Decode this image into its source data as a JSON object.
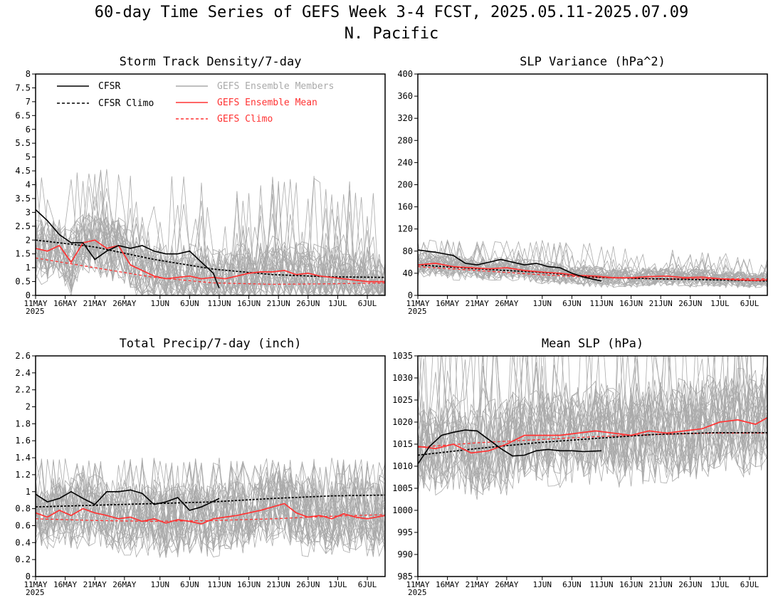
{
  "page": {
    "title_line1": "60-day Time Series of GEFS Week 3-4 FCST, 2025.05.11-2025.07.09",
    "title_line2": "N. Pacific"
  },
  "colors": {
    "obs": "#000000",
    "members": "#aaaaaa",
    "mean": "#ff3333",
    "gefs_climo": "#ff3333"
  },
  "x_axis": {
    "tick_labels": [
      "11MAY",
      "16MAY",
      "21MAY",
      "26MAY",
      "1JUN",
      "6JUN",
      "11JUN",
      "16JUN",
      "21JUN",
      "26JUN",
      "1JUL",
      "6JUL"
    ],
    "tick_days": [
      0,
      5,
      10,
      15,
      21,
      26,
      31,
      36,
      41,
      46,
      51,
      56
    ],
    "year_label": "2025",
    "range_days": [
      0,
      59
    ]
  },
  "legend": {
    "cfsr": "CFSR",
    "cfsr_climo": "CFSR Climo",
    "members": "GEFS Ensemble Members",
    "mean": "GEFS Ensemble Mean",
    "gefs_climo": "GEFS Climo"
  },
  "chart_data": [
    {
      "type": "line",
      "title": "Storm Track Density/7-day",
      "ylim": [
        0,
        8
      ],
      "yticks": [
        "0",
        "0.5",
        "1",
        "1.5",
        "2",
        "2.5",
        "3",
        "3.5",
        "4",
        "4.5",
        "5",
        "5.5",
        "6",
        "6.5",
        "7",
        "7.5",
        "8"
      ],
      "grid": false,
      "legend_position": "top-left",
      "series": [
        {
          "name": "CFSR",
          "role": "obs",
          "x": [
            0,
            2,
            4,
            6,
            8,
            10,
            12,
            14,
            16,
            18,
            20,
            22,
            24,
            26,
            28,
            30,
            31
          ],
          "y": [
            3.1,
            2.7,
            2.2,
            1.9,
            1.9,
            1.3,
            1.6,
            1.8,
            1.7,
            1.8,
            1.6,
            1.5,
            1.5,
            1.6,
            1.2,
            0.8,
            0.25
          ]
        },
        {
          "name": "CFSR Climo",
          "role": "obs_climo",
          "x": [
            0,
            10,
            20,
            30,
            40,
            50,
            59
          ],
          "y": [
            2.0,
            1.75,
            1.3,
            0.95,
            0.75,
            0.67,
            0.65
          ]
        },
        {
          "name": "GEFS Ensemble Mean",
          "role": "mean",
          "x": [
            0,
            2,
            4,
            6,
            8,
            10,
            12,
            14,
            16,
            18,
            20,
            22,
            24,
            26,
            28,
            30,
            32,
            34,
            36,
            38,
            40,
            42,
            44,
            46,
            48,
            50,
            52,
            54,
            56,
            59
          ],
          "y": [
            1.7,
            1.6,
            1.8,
            1.2,
            1.9,
            2.0,
            1.7,
            1.8,
            1.1,
            0.9,
            0.7,
            0.6,
            0.65,
            0.7,
            0.6,
            0.65,
            0.6,
            0.7,
            0.8,
            0.85,
            0.85,
            0.9,
            0.75,
            0.8,
            0.7,
            0.65,
            0.6,
            0.55,
            0.5,
            0.5
          ]
        },
        {
          "name": "GEFS Climo",
          "role": "model_climo",
          "x": [
            0,
            10,
            20,
            30,
            40,
            50,
            59
          ],
          "y": [
            1.35,
            1.0,
            0.65,
            0.45,
            0.4,
            0.42,
            0.45
          ]
        }
      ],
      "members": {
        "count": 31,
        "spread_start": 1.0,
        "spread_end": 1.0,
        "max": 4.6
      }
    },
    {
      "type": "line",
      "title": "SLP Variance (hPa^2)",
      "ylim": [
        0,
        400
      ],
      "yticks": [
        "0",
        "40",
        "80",
        "120",
        "160",
        "200",
        "240",
        "280",
        "320",
        "360",
        "400"
      ],
      "grid": false,
      "series": [
        {
          "name": "CFSR",
          "role": "obs",
          "x": [
            0,
            3,
            6,
            8,
            10,
            12,
            14,
            16,
            18,
            20,
            22,
            24,
            26,
            28,
            31
          ],
          "y": [
            82,
            78,
            72,
            58,
            55,
            60,
            65,
            60,
            55,
            58,
            52,
            50,
            40,
            33,
            26
          ]
        },
        {
          "name": "CFSR Climo",
          "role": "obs_climo",
          "x": [
            0,
            10,
            20,
            30,
            40,
            50,
            59
          ],
          "y": [
            55,
            48,
            42,
            33,
            30,
            28,
            26
          ]
        },
        {
          "name": "GEFS Ensemble Mean",
          "role": "mean",
          "x": [
            0,
            3,
            6,
            9,
            12,
            15,
            18,
            21,
            24,
            27,
            30,
            33,
            36,
            39,
            42,
            45,
            48,
            51,
            54,
            57,
            59
          ],
          "y": [
            55,
            58,
            52,
            50,
            48,
            50,
            45,
            42,
            40,
            36,
            35,
            32,
            32,
            34,
            35,
            32,
            33,
            30,
            28,
            27,
            28
          ]
        },
        {
          "name": "GEFS Climo",
          "role": "model_climo",
          "x": [
            0,
            10,
            20,
            30,
            40,
            50,
            59
          ],
          "y": [
            52,
            45,
            38,
            32,
            30,
            30,
            30
          ]
        }
      ],
      "members": {
        "count": 31,
        "spread_start": 20,
        "spread_end": 12,
        "max": 100
      }
    },
    {
      "type": "line",
      "title": "Total Precip/7-day (inch)",
      "ylim": [
        0,
        2.6
      ],
      "yticks": [
        "0",
        "0.2",
        "0.4",
        "0.6",
        "0.8",
        "1",
        "1.2",
        "1.4",
        "1.6",
        "1.8",
        "2",
        "2.2",
        "2.4",
        "2.6"
      ],
      "grid": false,
      "series": [
        {
          "name": "CFSR",
          "role": "obs",
          "x": [
            0,
            2,
            4,
            6,
            8,
            10,
            12,
            14,
            16,
            18,
            20,
            22,
            24,
            26,
            28,
            31
          ],
          "y": [
            0.97,
            0.88,
            0.92,
            1.0,
            0.92,
            0.85,
            1.0,
            1.0,
            1.02,
            0.98,
            0.85,
            0.88,
            0.93,
            0.78,
            0.82,
            0.92
          ]
        },
        {
          "name": "CFSR Climo",
          "role": "obs_climo",
          "x": [
            0,
            10,
            20,
            30,
            40,
            50,
            59
          ],
          "y": [
            0.82,
            0.84,
            0.86,
            0.88,
            0.92,
            0.95,
            0.96
          ]
        },
        {
          "name": "GEFS Ensemble Mean",
          "role": "mean",
          "x": [
            0,
            2,
            4,
            6,
            8,
            10,
            12,
            14,
            16,
            18,
            20,
            22,
            24,
            26,
            28,
            30,
            32,
            34,
            36,
            38,
            40,
            42,
            44,
            46,
            48,
            50,
            52,
            54,
            56,
            59
          ],
          "y": [
            0.75,
            0.7,
            0.78,
            0.72,
            0.8,
            0.75,
            0.72,
            0.68,
            0.7,
            0.65,
            0.68,
            0.63,
            0.67,
            0.65,
            0.62,
            0.68,
            0.7,
            0.72,
            0.75,
            0.78,
            0.82,
            0.86,
            0.75,
            0.7,
            0.72,
            0.68,
            0.74,
            0.7,
            0.68,
            0.72
          ]
        },
        {
          "name": "GEFS Climo",
          "role": "model_climo",
          "x": [
            0,
            10,
            20,
            30,
            40,
            50,
            59
          ],
          "y": [
            0.68,
            0.66,
            0.65,
            0.66,
            0.68,
            0.71,
            0.73
          ]
        }
      ],
      "members": {
        "count": 31,
        "spread_start": 0.35,
        "spread_end": 0.4,
        "max": 1.4
      }
    },
    {
      "type": "line",
      "title": "Mean SLP (hPa)",
      "ylim": [
        985,
        1035
      ],
      "yticks": [
        "985",
        "990",
        "995",
        "1000",
        "1005",
        "1010",
        "1015",
        "1020",
        "1025",
        "1030",
        "1035"
      ],
      "grid": false,
      "series": [
        {
          "name": "CFSR",
          "role": "obs",
          "x": [
            0,
            2,
            4,
            6,
            8,
            10,
            12,
            14,
            16,
            18,
            20,
            22,
            24,
            26,
            28,
            31
          ],
          "y": [
            1010.5,
            1014.5,
            1017,
            1017.7,
            1018.2,
            1018,
            1016,
            1014,
            1012.3,
            1012.5,
            1013.5,
            1013.8,
            1013.5,
            1013.5,
            1013.3,
            1013.5
          ]
        },
        {
          "name": "CFSR Climo",
          "role": "obs_climo",
          "x": [
            0,
            10,
            20,
            30,
            40,
            50,
            59
          ],
          "y": [
            1012.5,
            1014,
            1015.3,
            1016.3,
            1017.2,
            1017.6,
            1017.6
          ]
        },
        {
          "name": "GEFS Ensemble Mean",
          "role": "mean",
          "x": [
            0,
            3,
            6,
            9,
            12,
            15,
            18,
            21,
            24,
            27,
            30,
            33,
            36,
            39,
            42,
            45,
            48,
            51,
            54,
            57,
            59
          ],
          "y": [
            1014.5,
            1014,
            1015,
            1013,
            1013.5,
            1015,
            1017,
            1017,
            1017,
            1017.5,
            1018,
            1017.5,
            1017,
            1018,
            1017.5,
            1018,
            1018.5,
            1020,
            1020.5,
            1019.5,
            1021
          ]
        },
        {
          "name": "GEFS Climo",
          "role": "model_climo",
          "x": [
            0,
            10,
            20,
            30,
            40,
            50,
            59
          ],
          "y": [
            1014.3,
            1015.3,
            1016,
            1016.7,
            1017.2,
            1017.5,
            1017.5
          ]
        }
      ],
      "members": {
        "count": 31,
        "spread_start": 9,
        "spread_end": 10,
        "min": 1000
      }
    }
  ]
}
